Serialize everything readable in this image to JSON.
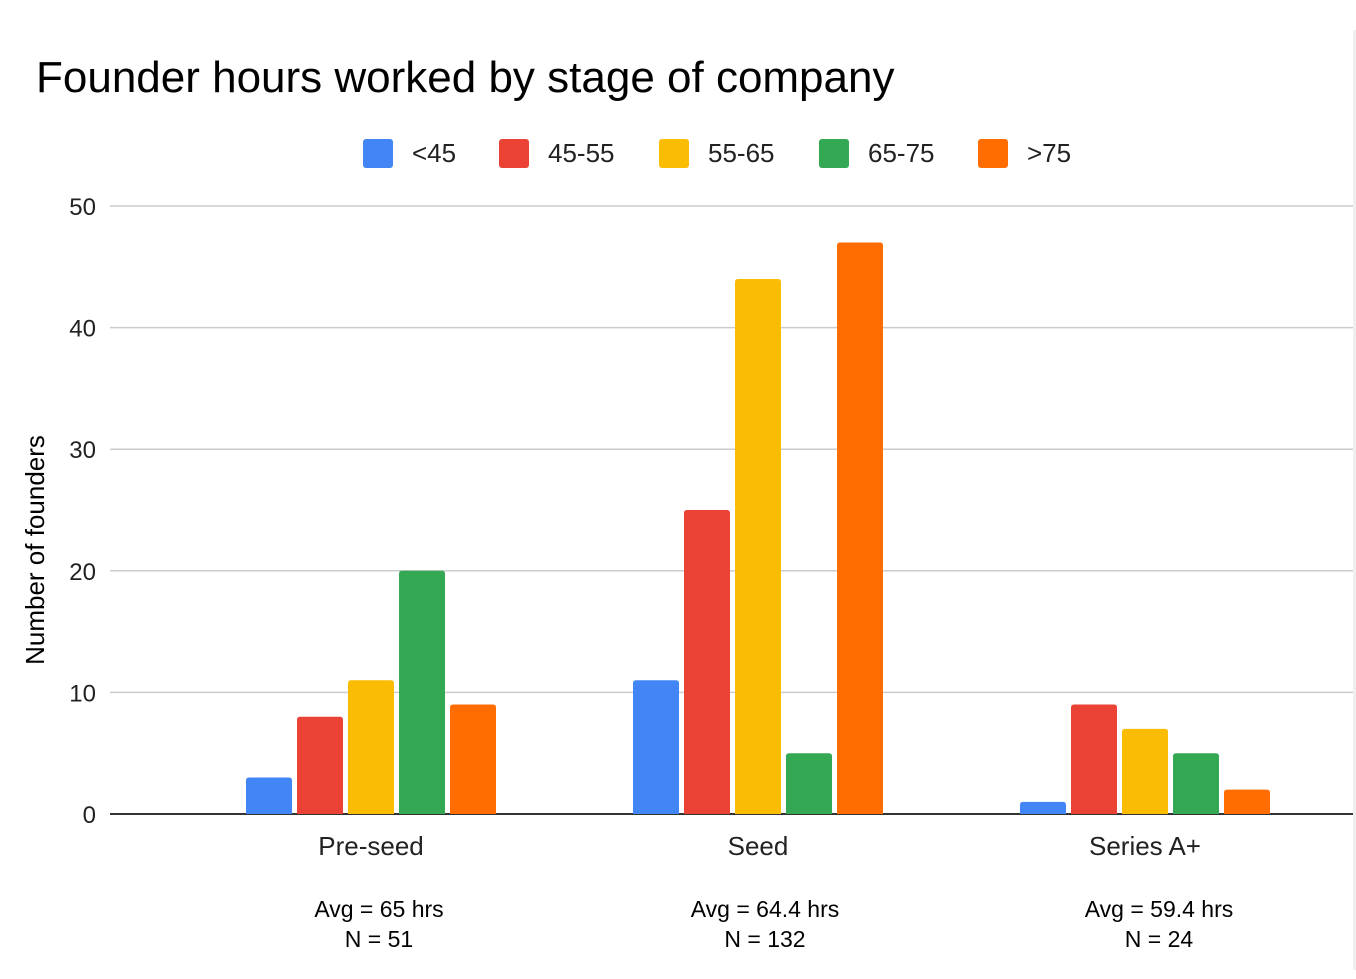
{
  "chart_data": {
    "type": "bar",
    "title": "Founder hours worked by stage of company",
    "ylabel": "Number of founders",
    "xlabel": "",
    "ylim": [
      0,
      50
    ],
    "yticks": [
      0,
      10,
      20,
      30,
      40,
      50
    ],
    "grid": true,
    "legend_position": "top",
    "categories": [
      "Pre-seed",
      "Seed",
      "Series A+"
    ],
    "category_notes": [
      {
        "avg": "Avg = 65 hrs",
        "n": "N = 51"
      },
      {
        "avg": "Avg = 64.4 hrs",
        "n": "N = 132"
      },
      {
        "avg": "Avg = 59.4 hrs",
        "n": "N = 24"
      }
    ],
    "series": [
      {
        "name": "<45",
        "color": "#4285f4",
        "values": [
          3,
          11,
          1
        ]
      },
      {
        "name": "45-55",
        "color": "#ea4335",
        "values": [
          8,
          25,
          9
        ]
      },
      {
        "name": "55-65",
        "color": "#fbbc04",
        "values": [
          11,
          44,
          7
        ]
      },
      {
        "name": "65-75",
        "color": "#34a853",
        "values": [
          20,
          5,
          5
        ]
      },
      {
        "name": ">75",
        "color": "#ff6d01",
        "values": [
          9,
          47,
          2
        ]
      }
    ]
  }
}
